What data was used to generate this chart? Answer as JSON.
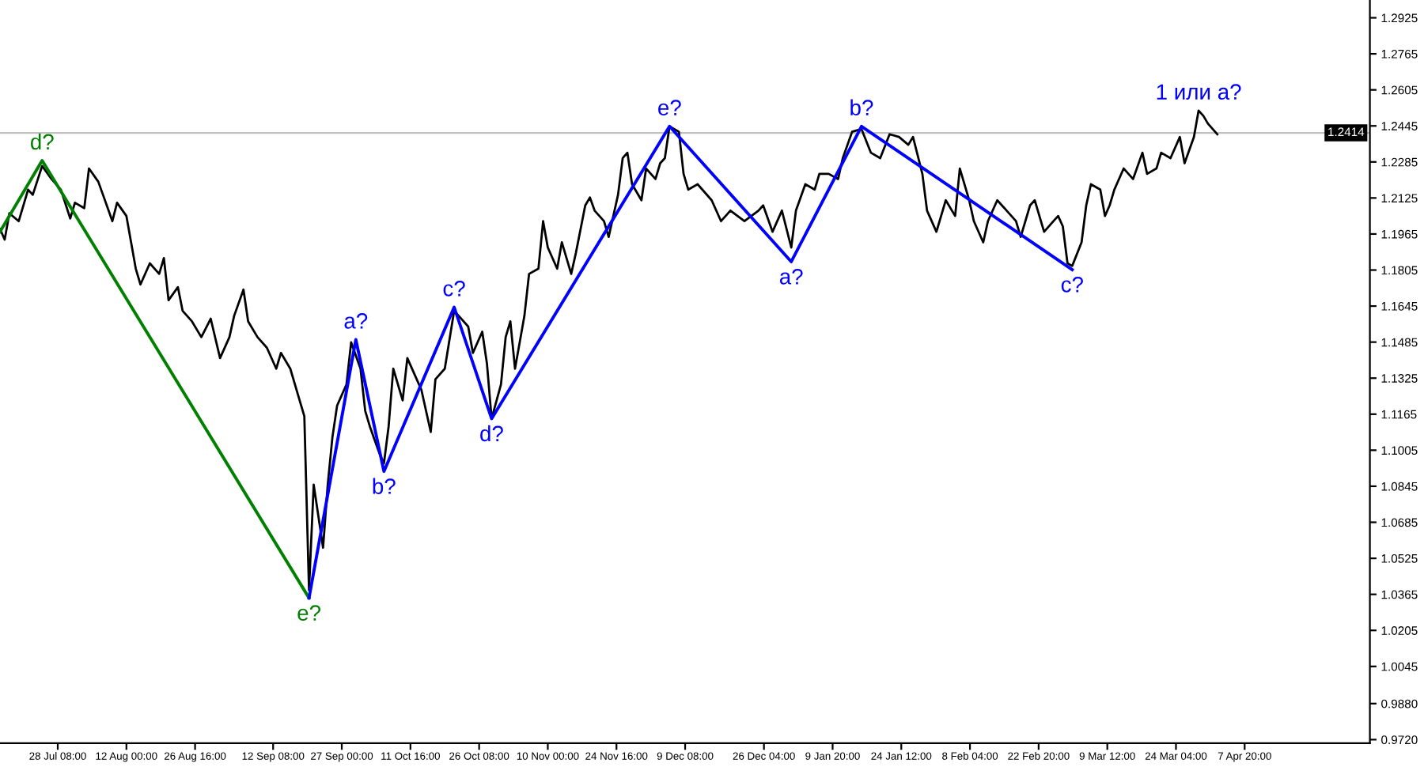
{
  "chart_data": {
    "type": "line",
    "xlim": [
      "2020-07-16",
      "2021-05-04T14:00"
    ],
    "ylim": [
      0.9704,
      1.3004
    ],
    "xticks": [
      {
        "value": "2020-07-28T08:00",
        "label": "28 Jul 08:00"
      },
      {
        "value": "2020-08-12T00:00",
        "label": "12 Aug 00:00"
      },
      {
        "value": "2020-08-26T16:00",
        "label": "26 Aug 16:00"
      },
      {
        "value": "2020-09-12T08:00",
        "label": "12 Sep 08:00"
      },
      {
        "value": "2020-09-27T00:00",
        "label": "27 Sep 00:00"
      },
      {
        "value": "2020-10-11T16:00",
        "label": "11 Oct 16:00"
      },
      {
        "value": "2020-10-26T08:00",
        "label": "26 Oct 08:00"
      },
      {
        "value": "2020-11-10T00:00",
        "label": "10 Nov 00:00"
      },
      {
        "value": "2020-11-24T16:00",
        "label": "24 Nov 16:00"
      },
      {
        "value": "2020-12-09T08:00",
        "label": "9 Dec 08:00"
      },
      {
        "value": "2020-12-26T04:00",
        "label": "26 Dec 04:00"
      },
      {
        "value": "2021-01-09T20:00",
        "label": "9 Jan 20:00"
      },
      {
        "value": "2021-01-24T12:00",
        "label": "24 Jan 12:00"
      },
      {
        "value": "2021-02-08T04:00",
        "label": "8 Feb 04:00"
      },
      {
        "value": "2021-02-22T20:00",
        "label": "22 Feb 20:00"
      },
      {
        "value": "2021-03-09T12:00",
        "label": "9 Mar 12:00"
      },
      {
        "value": "2021-03-24T04:00",
        "label": "24 Mar 04:00"
      },
      {
        "value": "2021-04-07T20:00",
        "label": "7 Apr 20:00"
      }
    ],
    "yticks": [
      {
        "value": 1.2925,
        "label": "1.2925"
      },
      {
        "value": 1.2765,
        "label": "1.2765"
      },
      {
        "value": 1.2605,
        "label": "1.2605"
      },
      {
        "value": 1.2445,
        "label": "1.2445"
      },
      {
        "value": 1.2285,
        "label": "1.2285"
      },
      {
        "value": 1.2125,
        "label": "1.2125"
      },
      {
        "value": 1.1965,
        "label": "1.1965"
      },
      {
        "value": 1.1805,
        "label": "1.1805"
      },
      {
        "value": 1.1645,
        "label": "1.1645"
      },
      {
        "value": 1.1485,
        "label": "1.1485"
      },
      {
        "value": 1.1325,
        "label": "1.1325"
      },
      {
        "value": 1.1165,
        "label": "1.1165"
      },
      {
        "value": 1.1005,
        "label": "1.1005"
      },
      {
        "value": 1.0845,
        "label": "1.0845"
      },
      {
        "value": 1.0685,
        "label": "1.0685"
      },
      {
        "value": 1.0525,
        "label": "1.0525"
      },
      {
        "value": 1.0365,
        "label": "1.0365"
      },
      {
        "value": 1.0205,
        "label": "1.0205"
      },
      {
        "value": 1.0045,
        "label": "1.0045"
      },
      {
        "value": 0.988,
        "label": "0.9880"
      },
      {
        "value": 0.972,
        "label": "0.9720"
      }
    ],
    "grid": false,
    "legend": false,
    "ref_lines": [
      {
        "axis": "y",
        "value": 1.2414,
        "label": "1.2414",
        "color": "#c0c0c0"
      }
    ],
    "series": [
      {
        "color": "#000000",
        "x": [
          "2020-07-16",
          "2020-07-17",
          "2020-07-18",
          "2020-07-20",
          "2020-07-22",
          "2020-07-23",
          "2020-07-25",
          "2020-07-27",
          "2020-07-29",
          "2020-07-31",
          "2020-08-01",
          "2020-08-03",
          "2020-08-04",
          "2020-08-06",
          "2020-08-07",
          "2020-08-09",
          "2020-08-10",
          "2020-08-12",
          "2020-08-13",
          "2020-08-14",
          "2020-08-15",
          "2020-08-17",
          "2020-08-19",
          "2020-08-20",
          "2020-08-21",
          "2020-08-23",
          "2020-08-24",
          "2020-08-26",
          "2020-08-28",
          "2020-08-30",
          "2020-09-01",
          "2020-09-03",
          "2020-09-04",
          "2020-09-06",
          "2020-09-07",
          "2020-09-09",
          "2020-09-11",
          "2020-09-13",
          "2020-09-14",
          "2020-09-16",
          "2020-09-18",
          "2020-09-19",
          "2020-09-20",
          "2020-09-21",
          "2020-09-22",
          "2020-09-23",
          "2020-09-24",
          "2020-09-25",
          "2020-09-26",
          "2020-09-28",
          "2020-09-29",
          "2020-10-01",
          "2020-10-02",
          "2020-10-03",
          "2020-10-05",
          "2020-10-06",
          "2020-10-07",
          "2020-10-08",
          "2020-10-10",
          "2020-10-11",
          "2020-10-13",
          "2020-10-14",
          "2020-10-16",
          "2020-10-17",
          "2020-10-19",
          "2020-10-21",
          "2020-10-22",
          "2020-10-24",
          "2020-10-25",
          "2020-10-27",
          "2020-10-28",
          "2020-10-29",
          "2020-10-31",
          "2020-11-01",
          "2020-11-02",
          "2020-11-03",
          "2020-11-05",
          "2020-11-06",
          "2020-11-08",
          "2020-11-09",
          "2020-11-10",
          "2020-11-12",
          "2020-11-13",
          "2020-11-15",
          "2020-11-16",
          "2020-11-18",
          "2020-11-19",
          "2020-11-20",
          "2020-11-22",
          "2020-11-23",
          "2020-11-25",
          "2020-11-26",
          "2020-11-27",
          "2020-11-28",
          "2020-11-30",
          "2020-12-01",
          "2020-12-03",
          "2020-12-04",
          "2020-12-05",
          "2020-12-06",
          "2020-12-08",
          "2020-12-09",
          "2020-12-10",
          "2020-12-12",
          "2020-12-15",
          "2020-12-17",
          "2020-12-19",
          "2020-12-22",
          "2020-12-25",
          "2020-12-26",
          "2020-12-28",
          "2020-12-30",
          "2021-01-01",
          "2021-01-02",
          "2021-01-04",
          "2021-01-06",
          "2021-01-07",
          "2021-01-09",
          "2021-01-11",
          "2021-01-12",
          "2021-01-14",
          "2021-01-16",
          "2021-01-18",
          "2021-01-20",
          "2021-01-22",
          "2021-01-24",
          "2021-01-26",
          "2021-01-27",
          "2021-01-29",
          "2021-01-30",
          "2021-02-01",
          "2021-02-03",
          "2021-02-05",
          "2021-02-06",
          "2021-02-08",
          "2021-02-09",
          "2021-02-11",
          "2021-02-12",
          "2021-02-14",
          "2021-02-16",
          "2021-02-18",
          "2021-02-19",
          "2021-02-21",
          "2021-02-22",
          "2021-02-24",
          "2021-02-26",
          "2021-02-27",
          "2021-02-28",
          "2021-03-01",
          "2021-03-02",
          "2021-03-04",
          "2021-03-05",
          "2021-03-06",
          "2021-03-08",
          "2021-03-09",
          "2021-03-10",
          "2021-03-11",
          "2021-03-13",
          "2021-03-15",
          "2021-03-17",
          "2021-03-18",
          "2021-03-20",
          "2021-03-21",
          "2021-03-23",
          "2021-03-25",
          "2021-03-26",
          "2021-03-28",
          "2021-03-29",
          "2021-03-30",
          "2021-03-31",
          "2021-04-02"
        ],
        "values": [
          1.1987,
          1.194,
          1.2057,
          1.2022,
          1.2162,
          1.2139,
          1.2267,
          1.2209,
          1.2162,
          1.2034,
          1.2104,
          1.208,
          1.2256,
          1.2197,
          1.2139,
          1.2022,
          1.2104,
          1.2045,
          1.1928,
          1.1811,
          1.1741,
          1.1835,
          1.1788,
          1.1858,
          1.1671,
          1.1729,
          1.1624,
          1.1577,
          1.1507,
          1.1589,
          1.1414,
          1.1507,
          1.1601,
          1.1718,
          1.1577,
          1.1507,
          1.146,
          1.1367,
          1.1437,
          1.1367,
          1.1226,
          1.1156,
          1.0384,
          1.0852,
          1.0712,
          1.0572,
          1.0852,
          1.1063,
          1.1203,
          1.1297,
          1.1484,
          1.1367,
          1.118,
          1.111,
          1.0993,
          1.0946,
          1.111,
          1.1367,
          1.1226,
          1.1414,
          1.132,
          1.1273,
          1.1086,
          1.132,
          1.1367,
          1.1624,
          1.1601,
          1.1554,
          1.1437,
          1.1531,
          1.139,
          1.1145,
          1.1297,
          1.1507,
          1.1577,
          1.1367,
          1.1601,
          1.1788,
          1.1811,
          1.2022,
          1.1905,
          1.1811,
          1.1928,
          1.1788,
          1.1881,
          1.2092,
          1.2127,
          1.2069,
          1.2022,
          1.1952,
          1.2139,
          1.2302,
          1.2326,
          1.2186,
          1.2115,
          1.2256,
          1.2209,
          1.2279,
          1.2302,
          1.2443,
          1.2419,
          1.2232,
          1.2162,
          1.2186,
          1.2115,
          1.2022,
          1.2069,
          1.2022,
          1.2069,
          1.2092,
          1.1975,
          1.2069,
          1.1905,
          1.2069,
          1.2186,
          1.2162,
          1.2232,
          1.2232,
          1.2209,
          1.2302,
          1.2419,
          1.2431,
          1.2326,
          1.2302,
          1.2408,
          1.2396,
          1.2361,
          1.2396,
          1.2232,
          1.2069,
          1.1975,
          1.2115,
          1.2045,
          1.2256,
          1.2115,
          1.2022,
          1.1928,
          1.2022,
          1.2115,
          1.2069,
          1.2022,
          1.1952,
          1.2092,
          1.2115,
          1.1975,
          1.2022,
          1.2045,
          1.1999,
          1.1835,
          1.1823,
          1.1928,
          1.2092,
          1.2186,
          1.2162,
          1.2045,
          1.2092,
          1.2162,
          1.2256,
          1.2209,
          1.2326,
          1.2232,
          1.2256,
          1.2326,
          1.2302,
          1.2396,
          1.2279,
          1.2396,
          1.2513,
          1.249,
          1.2455,
          1.2408
        ]
      },
      {
        "color": "#008000",
        "x": [
          "2020-07-16",
          "2020-07-25",
          "2020-09-20"
        ],
        "values": [
          1.1975,
          1.2291,
          1.0349
        ]
      },
      {
        "color": "#0000ff",
        "x": [
          "2020-09-20",
          "2020-09-30",
          "2020-10-06",
          "2020-10-21",
          "2020-10-29",
          "2020-12-06",
          "2021-01-01",
          "2021-01-16",
          "2021-03-02"
        ],
        "values": [
          1.0349,
          1.1496,
          1.0911,
          1.164,
          1.1145,
          1.2443,
          1.1842,
          1.2443,
          1.1807
        ]
      }
    ],
    "annotations": [
      {
        "text": "d?",
        "x": "2020-07-25",
        "y": 1.2291
      },
      {
        "text": "e?",
        "x": "2020-09-20",
        "y": 1.0349
      },
      {
        "text": "a?",
        "x": "2020-09-30",
        "y": 1.1496
      },
      {
        "text": "b?",
        "x": "2020-10-06",
        "y": 1.0911
      },
      {
        "text": "c?",
        "x": "2020-10-21",
        "y": 1.164
      },
      {
        "text": "d?",
        "x": "2020-10-29",
        "y": 1.1145
      },
      {
        "text": "e?",
        "x": "2020-12-06",
        "y": 1.2443
      },
      {
        "text": "a?",
        "x": "2021-01-01",
        "y": 1.1842
      },
      {
        "text": "b?",
        "x": "2021-01-16",
        "y": 1.2443
      },
      {
        "text": "c?",
        "x": "2021-03-02",
        "y": 1.1807
      },
      {
        "text": "1 или a?",
        "x": "2021-03-29",
        "y": 1.2513
      }
    ]
  }
}
